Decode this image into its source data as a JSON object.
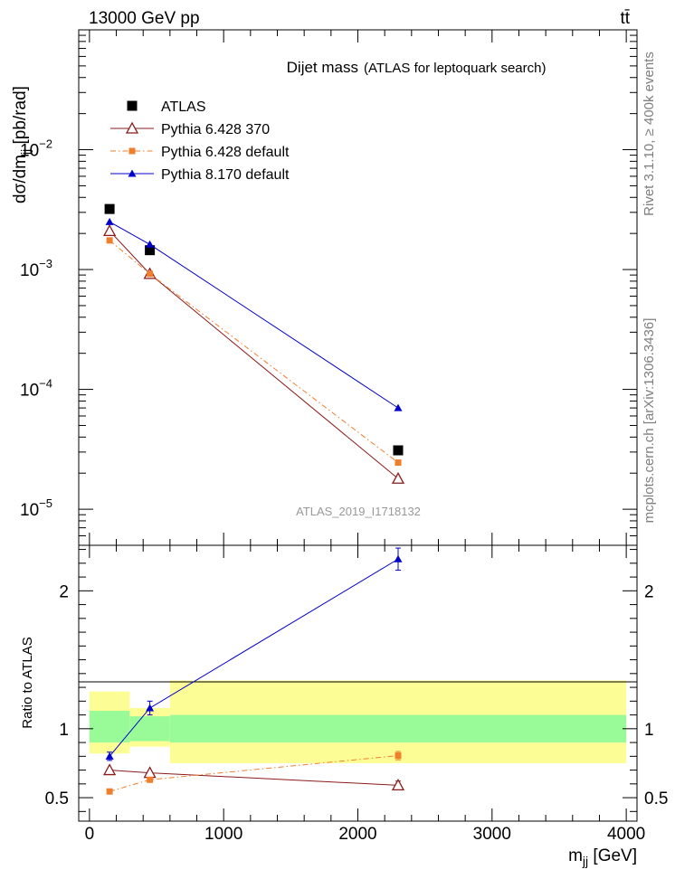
{
  "header": {
    "left": "13000 GeV pp",
    "right": "tt̄"
  },
  "side_labels": {
    "rivet": "Rivet 3.1.10, ≥ 400k events",
    "source": "mcplots.cern.ch [arXiv:1306.3436]"
  },
  "chart_data": [
    {
      "type": "scatter",
      "title": "Dijet mass",
      "subtitle": "(ATLAS for leptoquark search)",
      "analysis_id": "ATLAS_2019_I1718132",
      "ylabel": "dσ/dm_jj [pb/rad]",
      "ylabel_main": "dσ/dm",
      "ylabel_sub": "jj",
      "ylabel_unit": " [pb/rad]",
      "yscale": "log",
      "ylim": [
        5e-06,
        0.1
      ],
      "xlim": [
        -80,
        4080
      ],
      "yticks": [
        {
          "label": "10",
          "exp": "−5"
        },
        {
          "label": "10",
          "exp": "−4"
        },
        {
          "label": "10",
          "exp": "−3"
        },
        {
          "label": "10",
          "exp": "−2"
        }
      ],
      "legend_position": "top-left",
      "series": [
        {
          "name": "ATLAS",
          "color": "#000000",
          "marker": "square",
          "x": [
            150,
            450,
            2300
          ],
          "y": [
            0.0032,
            0.00145,
            3.1e-05
          ]
        },
        {
          "name": "Pythia 6.428 370",
          "color": "#8b1a1a",
          "marker": "open-triangle",
          "line": "solid",
          "x": [
            150,
            450,
            2300
          ],
          "y": [
            0.0021,
            0.00092,
            1.8e-05
          ]
        },
        {
          "name": "Pythia 6.428 default",
          "color": "#f07f2d",
          "marker": "small-square",
          "line": "dash-dot",
          "x": [
            150,
            450,
            2300
          ],
          "y": [
            0.00175,
            0.00092,
            2.45e-05
          ]
        },
        {
          "name": "Pythia 8.170 default",
          "color": "#0000cc",
          "marker": "triangle",
          "line": "solid",
          "x": [
            150,
            450,
            2300
          ],
          "y": [
            0.0025,
            0.00162,
            7e-05
          ]
        }
      ]
    },
    {
      "type": "line",
      "ylabel": "Ratio to ATLAS",
      "xlabel": "m_jj [GeV]",
      "xlabel_main": "m",
      "xlabel_sub": "jj",
      "xlabel_unit": " [GeV]",
      "xlim": [
        -80,
        4080
      ],
      "ylim": [
        0.33,
        2.33
      ],
      "xticks": [
        "0",
        "1000",
        "2000",
        "3000",
        "4000"
      ],
      "yticks": [
        "0.5",
        "1",
        "2"
      ],
      "bands": [
        {
          "x0": 0,
          "x1": 300,
          "inner": [
            0.9,
            1.13
          ],
          "outer": [
            0.82,
            1.27
          ]
        },
        {
          "x0": 300,
          "x1": 600,
          "inner": [
            0.91,
            1.09
          ],
          "outer": [
            0.87,
            1.15
          ]
        },
        {
          "x0": 600,
          "x1": 4000,
          "inner": [
            0.9,
            1.1
          ],
          "outer": [
            0.75,
            1.35
          ]
        }
      ],
      "series": [
        {
          "name": "Pythia 6.428 370",
          "color": "#8b1a1a",
          "marker": "open-triangle",
          "line": "solid",
          "x": [
            150,
            450,
            2300
          ],
          "y": [
            0.7,
            0.68,
            0.59
          ],
          "err": [
            0.0,
            0.0,
            0.03
          ]
        },
        {
          "name": "Pythia 6.428 default",
          "color": "#f07f2d",
          "marker": "small-square",
          "line": "dash-dot",
          "x": [
            150,
            450,
            2300
          ],
          "y": [
            0.545,
            0.63,
            0.805
          ],
          "err": [
            0.0,
            0.0,
            0.03
          ]
        },
        {
          "name": "Pythia 8.170 default",
          "color": "#0000cc",
          "marker": "triangle",
          "line": "solid",
          "x": [
            150,
            450,
            2300
          ],
          "y": [
            0.8,
            1.15,
            2.23
          ],
          "err": [
            0.03,
            0.05,
            0.08
          ]
        }
      ]
    }
  ]
}
